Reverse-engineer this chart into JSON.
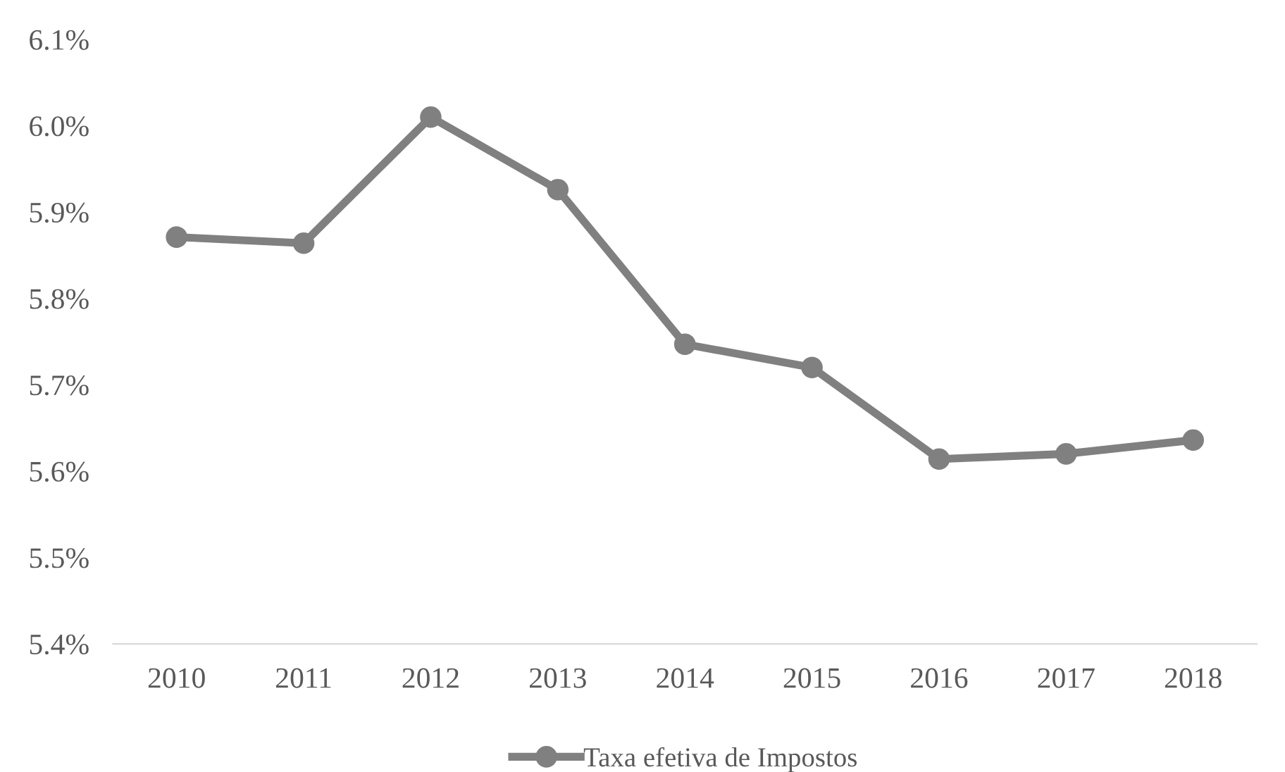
{
  "chart_data": {
    "type": "line",
    "categories": [
      "2010",
      "2011",
      "2012",
      "2013",
      "2014",
      "2015",
      "2016",
      "2017",
      "2018"
    ],
    "series": [
      {
        "name": "Taxa efetiva de Impostos",
        "color": "#808080",
        "values": [
          5.871,
          5.864,
          6.01,
          5.926,
          5.747,
          5.72,
          5.614,
          5.62,
          5.636
        ]
      }
    ],
    "ylim": [
      5.4,
      6.1
    ],
    "yticks": [
      {
        "value": 5.4,
        "label": "5.4%"
      },
      {
        "value": 5.5,
        "label": "5.5%"
      },
      {
        "value": 5.6,
        "label": "5.6%"
      },
      {
        "value": 5.7,
        "label": "5.7%"
      },
      {
        "value": 5.8,
        "label": "5.8%"
      },
      {
        "value": 5.9,
        "label": "5.9%"
      },
      {
        "value": 6.0,
        "label": "6.0%"
      },
      {
        "value": 6.1,
        "label": "6.1%"
      }
    ],
    "marker": "circle",
    "line_style": "solid",
    "legend": "bottom",
    "grid": false
  }
}
